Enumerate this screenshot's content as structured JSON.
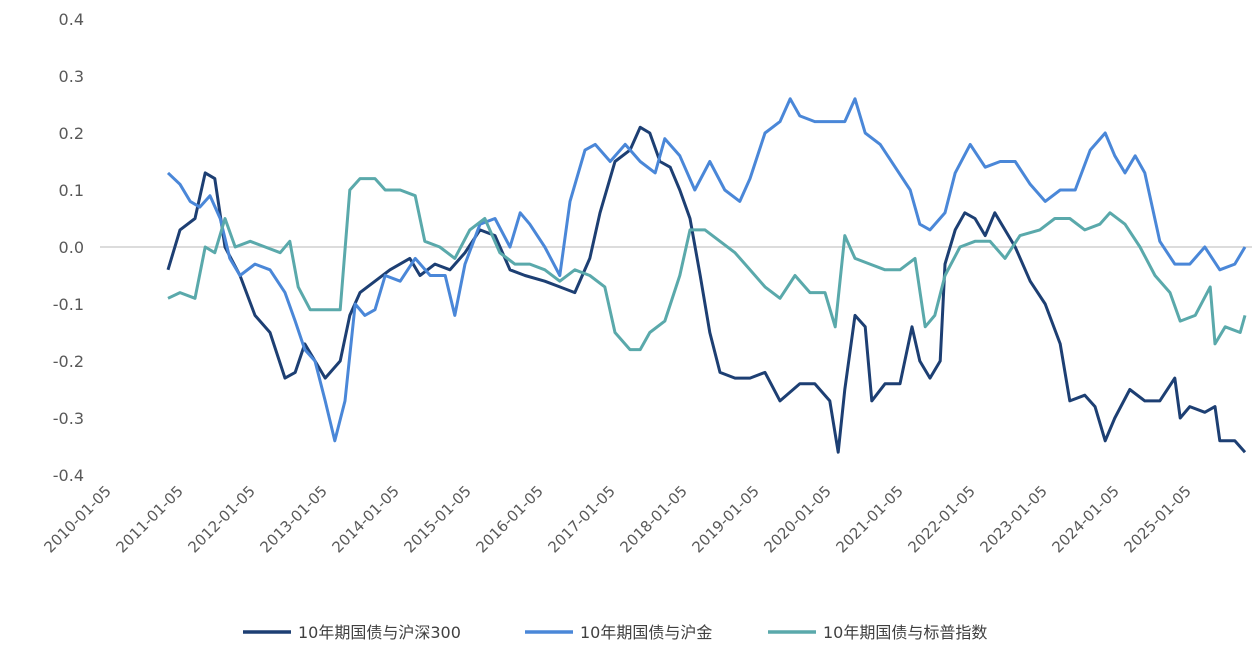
{
  "chart_data": {
    "type": "line",
    "title": "",
    "xlabel": "",
    "ylabel": "",
    "x_unit": "months since 2010-01",
    "ylim": [
      -0.4,
      0.4
    ],
    "yticks": [
      "0.4",
      "0.3",
      "0.2",
      "0.1",
      "0.0",
      "-0.1",
      "-0.2",
      "-0.3",
      "-0.4"
    ],
    "ytick_values": [
      0.4,
      0.3,
      0.2,
      0.1,
      0.0,
      -0.1,
      -0.2,
      -0.3,
      -0.4
    ],
    "xticks": [
      "2010-01-05",
      "2011-01-05",
      "2012-01-05",
      "2013-01-05",
      "2014-01-05",
      "2015-01-05",
      "2016-01-05",
      "2017-01-05",
      "2018-01-05",
      "2019-01-05",
      "2020-01-05",
      "2021-01-05",
      "2022-01-05",
      "2023-01-05",
      "2024-01-05",
      "2025-01-05"
    ],
    "legend_position": "bottom",
    "series": [
      {
        "name": "10年期国债与沪深300",
        "color": "#1d3f73",
        "points": [
          [
            10,
            -0.04
          ],
          [
            12,
            0.03
          ],
          [
            14.5,
            0.05
          ],
          [
            16.2,
            0.13
          ],
          [
            17.8,
            0.12
          ],
          [
            19.5,
            0.0
          ],
          [
            22,
            -0.05
          ],
          [
            24.5,
            -0.12
          ],
          [
            27,
            -0.15
          ],
          [
            29.5,
            -0.23
          ],
          [
            31.2,
            -0.22
          ],
          [
            32.8,
            -0.17
          ],
          [
            34.5,
            -0.2
          ],
          [
            36.2,
            -0.23
          ],
          [
            38.7,
            -0.2
          ],
          [
            40.3,
            -0.12
          ],
          [
            42,
            -0.08
          ],
          [
            44.5,
            -0.06
          ],
          [
            47,
            -0.04
          ],
          [
            50.3,
            -0.02
          ],
          [
            52,
            -0.05
          ],
          [
            54.5,
            -0.03
          ],
          [
            57,
            -0.04
          ],
          [
            59.5,
            -0.01
          ],
          [
            62,
            0.03
          ],
          [
            64.5,
            0.02
          ],
          [
            67,
            -0.04
          ],
          [
            69.5,
            -0.05
          ],
          [
            72.8,
            -0.06
          ],
          [
            75.3,
            -0.07
          ],
          [
            77.8,
            -0.08
          ],
          [
            80.3,
            -0.02
          ],
          [
            82,
            0.06
          ],
          [
            84.5,
            0.15
          ],
          [
            87,
            0.17
          ],
          [
            88.7,
            0.21
          ],
          [
            90.3,
            0.2
          ],
          [
            92,
            0.15
          ],
          [
            93.7,
            0.14
          ],
          [
            95.3,
            0.1
          ],
          [
            97,
            0.05
          ],
          [
            98.7,
            -0.05
          ],
          [
            100.3,
            -0.15
          ],
          [
            102,
            -0.22
          ],
          [
            104.5,
            -0.23
          ],
          [
            107,
            -0.23
          ],
          [
            109.5,
            -0.22
          ],
          [
            112,
            -0.27
          ],
          [
            115.3,
            -0.24
          ],
          [
            117.8,
            -0.24
          ],
          [
            120.3,
            -0.27
          ],
          [
            121.7,
            -0.36
          ],
          [
            122.8,
            -0.25
          ],
          [
            124.5,
            -0.12
          ],
          [
            126.2,
            -0.14
          ],
          [
            127.3,
            -0.27
          ],
          [
            129.5,
            -0.24
          ],
          [
            132,
            -0.24
          ],
          [
            134,
            -0.14
          ],
          [
            135.3,
            -0.2
          ],
          [
            137,
            -0.23
          ],
          [
            138.7,
            -0.2
          ],
          [
            139.5,
            -0.03
          ],
          [
            141.2,
            0.03
          ],
          [
            142.8,
            0.06
          ],
          [
            144.5,
            0.05
          ],
          [
            146.2,
            0.02
          ],
          [
            147.8,
            0.06
          ],
          [
            149.5,
            0.03
          ],
          [
            151.2,
            0.0
          ],
          [
            153.7,
            -0.06
          ],
          [
            156.2,
            -0.1
          ],
          [
            158.7,
            -0.17
          ],
          [
            160.3,
            -0.27
          ],
          [
            162.8,
            -0.26
          ],
          [
            164.5,
            -0.28
          ],
          [
            166.2,
            -0.34
          ],
          [
            167.8,
            -0.3
          ],
          [
            170.3,
            -0.25
          ],
          [
            172.8,
            -0.27
          ],
          [
            175.3,
            -0.27
          ],
          [
            177.8,
            -0.23
          ],
          [
            178.7,
            -0.3
          ],
          [
            180.3,
            -0.28
          ],
          [
            182.8,
            -0.29
          ],
          [
            184.5,
            -0.28
          ],
          [
            185.3,
            -0.34
          ],
          [
            187.8,
            -0.34
          ],
          [
            189.5,
            -0.36
          ]
        ]
      },
      {
        "name": "10年期国债与沪金",
        "color": "#4a87d8",
        "points": [
          [
            10,
            0.13
          ],
          [
            12,
            0.11
          ],
          [
            13.7,
            0.08
          ],
          [
            15.3,
            0.07
          ],
          [
            17,
            0.09
          ],
          [
            18.7,
            0.05
          ],
          [
            20.3,
            -0.02
          ],
          [
            22,
            -0.05
          ],
          [
            24.5,
            -0.03
          ],
          [
            27,
            -0.04
          ],
          [
            29.5,
            -0.08
          ],
          [
            31.2,
            -0.13
          ],
          [
            32.8,
            -0.18
          ],
          [
            34.5,
            -0.2
          ],
          [
            36.2,
            -0.27
          ],
          [
            37.8,
            -0.34
          ],
          [
            39.5,
            -0.27
          ],
          [
            41.2,
            -0.1
          ],
          [
            42.8,
            -0.12
          ],
          [
            44.5,
            -0.11
          ],
          [
            46.2,
            -0.05
          ],
          [
            48.7,
            -0.06
          ],
          [
            51.2,
            -0.02
          ],
          [
            53.7,
            -0.05
          ],
          [
            56.2,
            -0.05
          ],
          [
            57.8,
            -0.12
          ],
          [
            59.5,
            -0.03
          ],
          [
            62,
            0.04
          ],
          [
            64.5,
            0.05
          ],
          [
            67,
            0.0
          ],
          [
            68.7,
            0.06
          ],
          [
            70.3,
            0.04
          ],
          [
            72.8,
            0.0
          ],
          [
            75.3,
            -0.05
          ],
          [
            77,
            0.08
          ],
          [
            79.5,
            0.17
          ],
          [
            81.2,
            0.18
          ],
          [
            83.7,
            0.15
          ],
          [
            86.2,
            0.18
          ],
          [
            88.7,
            0.15
          ],
          [
            91.2,
            0.13
          ],
          [
            92.8,
            0.19
          ],
          [
            95.3,
            0.16
          ],
          [
            97.8,
            0.1
          ],
          [
            100.3,
            0.15
          ],
          [
            102.8,
            0.1
          ],
          [
            105.3,
            0.08
          ],
          [
            107,
            0.12
          ],
          [
            109.5,
            0.2
          ],
          [
            112,
            0.22
          ],
          [
            113.7,
            0.26
          ],
          [
            115.3,
            0.23
          ],
          [
            117.8,
            0.22
          ],
          [
            120.3,
            0.22
          ],
          [
            122.8,
            0.22
          ],
          [
            124.5,
            0.26
          ],
          [
            126.2,
            0.2
          ],
          [
            128.7,
            0.18
          ],
          [
            131.2,
            0.14
          ],
          [
            133.7,
            0.1
          ],
          [
            135.3,
            0.04
          ],
          [
            137,
            0.03
          ],
          [
            139.5,
            0.06
          ],
          [
            141.2,
            0.13
          ],
          [
            143.7,
            0.18
          ],
          [
            146.2,
            0.14
          ],
          [
            148.7,
            0.15
          ],
          [
            151.2,
            0.15
          ],
          [
            153.7,
            0.11
          ],
          [
            156.2,
            0.08
          ],
          [
            158.7,
            0.1
          ],
          [
            161.2,
            0.1
          ],
          [
            163.7,
            0.17
          ],
          [
            166.2,
            0.2
          ],
          [
            167.8,
            0.16
          ],
          [
            169.5,
            0.13
          ],
          [
            171.2,
            0.16
          ],
          [
            172.8,
            0.13
          ],
          [
            175.3,
            0.01
          ],
          [
            177.8,
            -0.03
          ],
          [
            180.3,
            -0.03
          ],
          [
            182.8,
            0.0
          ],
          [
            185.3,
            -0.04
          ],
          [
            187.8,
            -0.03
          ],
          [
            189.5,
            0.0
          ]
        ]
      },
      {
        "name": "10年期国债与标普指数",
        "color": "#5aa9ab",
        "points": [
          [
            10,
            -0.09
          ],
          [
            12,
            -0.08
          ],
          [
            14.5,
            -0.09
          ],
          [
            16.2,
            0.0
          ],
          [
            17.8,
            -0.01
          ],
          [
            19.5,
            0.05
          ],
          [
            21.2,
            0.0
          ],
          [
            23.7,
            0.01
          ],
          [
            26.2,
            0.0
          ],
          [
            28.7,
            -0.01
          ],
          [
            30.3,
            0.01
          ],
          [
            31.7,
            -0.07
          ],
          [
            33.7,
            -0.11
          ],
          [
            36.2,
            -0.11
          ],
          [
            38.7,
            -0.11
          ],
          [
            40.3,
            0.1
          ],
          [
            42,
            0.12
          ],
          [
            44.5,
            0.12
          ],
          [
            46.2,
            0.1
          ],
          [
            48.7,
            0.1
          ],
          [
            51.2,
            0.09
          ],
          [
            52.8,
            0.01
          ],
          [
            55.3,
            0.0
          ],
          [
            57.8,
            -0.02
          ],
          [
            60.3,
            0.03
          ],
          [
            62.8,
            0.05
          ],
          [
            65.3,
            -0.01
          ],
          [
            67.8,
            -0.03
          ],
          [
            70.3,
            -0.03
          ],
          [
            72.8,
            -0.04
          ],
          [
            75.3,
            -0.06
          ],
          [
            77.8,
            -0.04
          ],
          [
            80.3,
            -0.05
          ],
          [
            82.8,
            -0.07
          ],
          [
            84.5,
            -0.15
          ],
          [
            87,
            -0.18
          ],
          [
            88.7,
            -0.18
          ],
          [
            90.3,
            -0.15
          ],
          [
            92.8,
            -0.13
          ],
          [
            95.3,
            -0.05
          ],
          [
            97,
            0.03
          ],
          [
            99.5,
            0.03
          ],
          [
            102,
            0.01
          ],
          [
            104.5,
            -0.01
          ],
          [
            107,
            -0.04
          ],
          [
            109.5,
            -0.07
          ],
          [
            112,
            -0.09
          ],
          [
            114.5,
            -0.05
          ],
          [
            117,
            -0.08
          ],
          [
            119.5,
            -0.08
          ],
          [
            121.2,
            -0.14
          ],
          [
            122.8,
            0.02
          ],
          [
            124.5,
            -0.02
          ],
          [
            127,
            -0.03
          ],
          [
            129.5,
            -0.04
          ],
          [
            132,
            -0.04
          ],
          [
            134.5,
            -0.02
          ],
          [
            136.2,
            -0.14
          ],
          [
            137.8,
            -0.12
          ],
          [
            139.5,
            -0.05
          ],
          [
            142,
            0.0
          ],
          [
            144.5,
            0.01
          ],
          [
            147,
            0.01
          ],
          [
            149.5,
            -0.02
          ],
          [
            152,
            0.02
          ],
          [
            155.3,
            0.03
          ],
          [
            157.8,
            0.05
          ],
          [
            160.3,
            0.05
          ],
          [
            162.8,
            0.03
          ],
          [
            165.3,
            0.04
          ],
          [
            167,
            0.06
          ],
          [
            169.5,
            0.04
          ],
          [
            172,
            0.0
          ],
          [
            174.5,
            -0.05
          ],
          [
            177,
            -0.08
          ],
          [
            178.7,
            -0.13
          ],
          [
            181.2,
            -0.12
          ],
          [
            183.7,
            -0.07
          ],
          [
            184.5,
            -0.17
          ],
          [
            186.2,
            -0.14
          ],
          [
            188.7,
            -0.15
          ],
          [
            189.5,
            -0.12
          ]
        ]
      }
    ]
  }
}
